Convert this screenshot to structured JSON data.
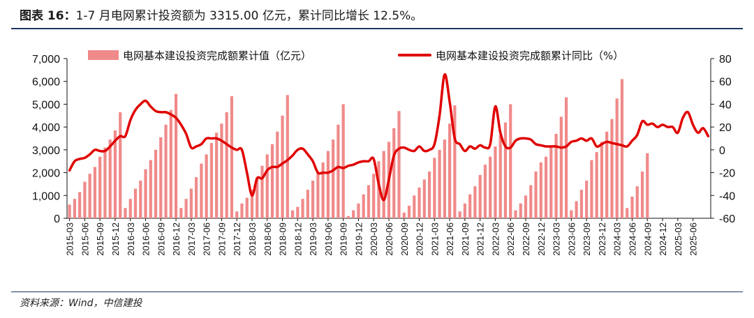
{
  "header": {
    "figure_label": "图表 16：",
    "title_text": "1-7 月电网累计投资额为 3315.00 亿元，累计同比增长 12.5%。"
  },
  "footer": {
    "source": "资料来源：Wind，中信建投"
  },
  "colors": {
    "bar": "#f08a8a",
    "line": "#e00000",
    "rule": "#1f3864"
  },
  "chart_data": {
    "type": "bar",
    "legend": {
      "position": "top",
      "bar_label": "电网基本建设投资完成额累计值（亿元）",
      "line_label": "电网基本建设投资完成额累计同比（%）"
    },
    "y_left": {
      "min": 0,
      "max": 7000,
      "ticks": [
        "0",
        "1,000",
        "2,000",
        "3,000",
        "4,000",
        "5,000",
        "6,000",
        "7,000"
      ]
    },
    "y_right": {
      "min": -60,
      "max": 80,
      "ticks": [
        "-60",
        "-40",
        "-20",
        "0",
        "20",
        "40",
        "60",
        "80"
      ]
    },
    "x_tick_labels": [
      "2015-03",
      "2015-06",
      "2015-09",
      "2015-12",
      "2016-03",
      "2016-06",
      "2016-09",
      "2016-12",
      "2017-03",
      "2017-06",
      "2017-09",
      "2017-12",
      "2018-03",
      "2018-06",
      "2018-09",
      "2018-12",
      "2019-03",
      "2019-06",
      "2019-09",
      "2019-12",
      "2020-03",
      "2020-06",
      "2020-09",
      "2020-12",
      "2021-03",
      "2021-06",
      "2021-09",
      "2021-12",
      "2022-03",
      "2022-06",
      "2022-09",
      "2022-12",
      "2023-03",
      "2023-06",
      "2023-09",
      "2023-12",
      "2024-03",
      "2024-06",
      "2024-09",
      "2024-12",
      "2025-03",
      "2025-06"
    ],
    "series": [
      {
        "name": "电网基本建设投资完成额累计值（亿元）",
        "type": "bar",
        "axis": "left",
        "values_by_year": [
          [
            600,
            850,
            1150,
            1600,
            1950,
            2250,
            2700,
            3100,
            3450,
            3850,
            4650
          ],
          [
            450,
            850,
            1300,
            1650,
            2150,
            2550,
            3000,
            3550,
            4100,
            4750,
            5450
          ],
          [
            450,
            850,
            1300,
            1800,
            2400,
            2800,
            3300,
            3750,
            4150,
            4650,
            5350
          ],
          [
            300,
            650,
            900,
            1250,
            1800,
            2300,
            2800,
            3250,
            3800,
            4500,
            5400
          ],
          [
            350,
            500,
            850,
            1250,
            1650,
            2000,
            2450,
            2950,
            3450,
            4100,
            5000
          ],
          [
            100,
            350,
            650,
            1050,
            1450,
            1950,
            2500,
            2950,
            3350,
            3950,
            4700
          ],
          [
            250,
            550,
            1000,
            1350,
            1700,
            2050,
            2650,
            3000,
            3450,
            4150,
            4950
          ],
          [
            300,
            650,
            1050,
            1400,
            1900,
            2350,
            2700,
            3150,
            3650,
            4200,
            5000
          ],
          [
            350,
            650,
            1000,
            1450,
            2050,
            2450,
            2700,
            3200,
            3700,
            4450,
            5300
          ],
          [
            350,
            750,
            1250,
            1650,
            2550,
            2900,
            3350,
            3800,
            4350,
            5250,
            6100
          ],
          [
            450,
            950,
            1400,
            2050,
            2850
          ]
        ]
      },
      {
        "name": "电网基本建设投资完成额累计同比（%）",
        "type": "line",
        "axis": "right",
        "values": [
          -18,
          -10,
          -8,
          -7,
          -4,
          0,
          -1,
          -1,
          3,
          8,
          12,
          12,
          26,
          35,
          40,
          43,
          38,
          34,
          33,
          33,
          31,
          28,
          22,
          14,
          2,
          3,
          5,
          10,
          10,
          10,
          8,
          5,
          2,
          0,
          0,
          -20,
          -40,
          -25,
          -25,
          -18,
          -15,
          -15,
          -12,
          -9,
          -5,
          0,
          1,
          -4,
          -10,
          -20,
          -20,
          -20,
          -18,
          -15,
          -16,
          -14,
          -13,
          -11,
          -10,
          -10,
          -8,
          -30,
          -44,
          -26,
          -5,
          1,
          2,
          0,
          -1,
          3,
          -1,
          0,
          5,
          30,
          66,
          42,
          10,
          5,
          -1,
          3,
          1,
          4,
          2,
          5,
          38,
          15,
          3,
          2,
          8,
          10,
          10,
          9,
          5,
          4,
          3,
          3,
          3,
          2,
          3,
          7,
          8,
          10,
          8,
          10,
          3,
          5,
          7,
          6,
          5,
          4,
          3,
          8,
          13,
          25,
          22,
          23,
          20,
          22,
          20,
          20,
          15,
          28,
          33,
          22,
          15,
          19,
          12
        ]
      }
    ]
  }
}
